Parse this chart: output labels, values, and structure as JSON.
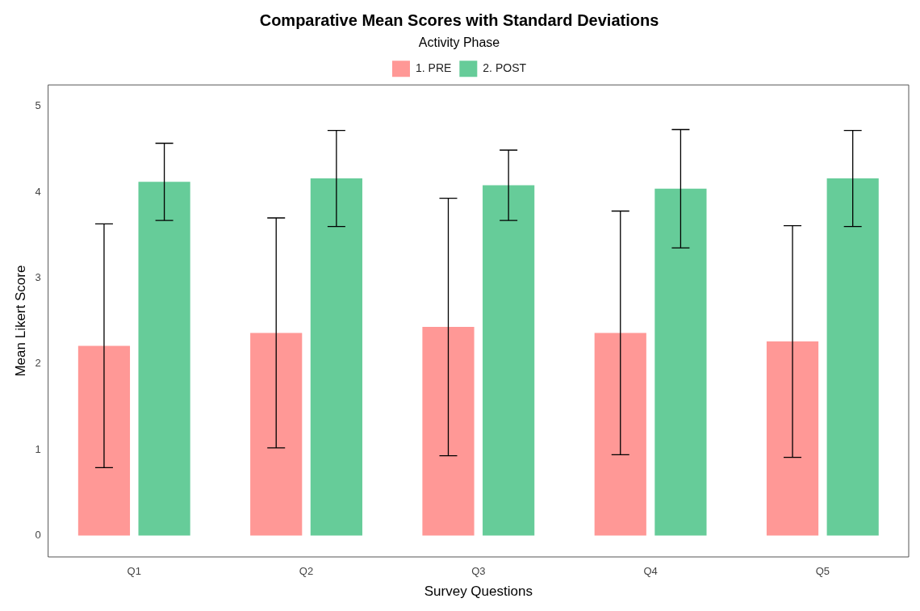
{
  "chart_data": {
    "type": "bar",
    "title": "Comparative Mean Scores with Standard Deviations",
    "xlabel": "Survey Questions",
    "ylabel": "Mean Likert Score",
    "legend_title": "Activity Phase",
    "legend": "top",
    "categories": [
      "Q1",
      "Q2",
      "Q3",
      "Q4",
      "Q5"
    ],
    "series": [
      {
        "name": "1. PRE",
        "color": "#ff9896",
        "values": [
          2.21,
          2.36,
          2.43,
          2.36,
          2.26
        ],
        "errors": [
          1.42,
          1.34,
          1.5,
          1.42,
          1.35
        ]
      },
      {
        "name": "2. POST",
        "color": "#66cc99",
        "values": [
          4.12,
          4.16,
          4.08,
          4.04,
          4.16
        ],
        "errors": [
          0.45,
          0.56,
          0.41,
          0.69,
          0.56
        ]
      }
    ],
    "ylim": [
      -0.25,
      5.25
    ],
    "yticks": [
      0,
      1,
      2,
      3,
      4,
      5
    ],
    "grid": false
  }
}
